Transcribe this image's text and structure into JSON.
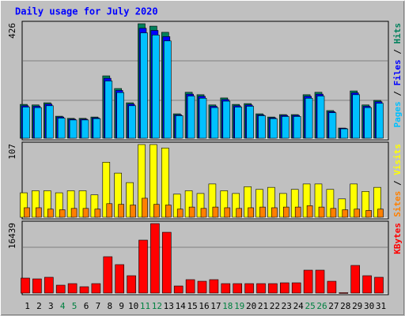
{
  "chart_data": [
    {
      "type": "bar",
      "title": "Daily usage for July 2020",
      "legend_separator": " / ",
      "ylim": [
        0,
        426
      ],
      "yticks": [
        426
      ],
      "series": [
        {
          "name": "Hits",
          "color": "#00805c",
          "values": [
            126,
            124,
            132,
            82,
            74,
            74,
            79,
            232,
            185,
            132,
            426,
            417,
            394,
            91,
            171,
            162,
            124,
            150,
            126,
            129,
            91,
            79,
            88,
            88,
            162,
            171,
            103,
            38,
            176,
            124,
            141
          ]
        },
        {
          "name": "Files",
          "color": "#0000ff",
          "values": [
            121,
            119,
            127,
            79,
            71,
            71,
            76,
            223,
            178,
            127,
            409,
            401,
            378,
            87,
            164,
            156,
            119,
            144,
            121,
            124,
            87,
            76,
            85,
            85,
            156,
            164,
            99,
            37,
            169,
            119,
            136
          ]
        },
        {
          "name": "Pages",
          "color": "#00c0ff",
          "values": [
            116,
            114,
            121,
            75,
            68,
            68,
            73,
            213,
            170,
            121,
            392,
            384,
            362,
            84,
            157,
            149,
            114,
            138,
            116,
            119,
            84,
            73,
            81,
            81,
            149,
            157,
            95,
            35,
            162,
            114,
            130
          ]
        }
      ]
    },
    {
      "type": "bar",
      "legend_separator": " / ",
      "ylim": [
        0,
        107
      ],
      "yticks": [
        107
      ],
      "series": [
        {
          "name": "Visits",
          "color": "#ffff00",
          "values": [
            36,
            39,
            39,
            36,
            39,
            39,
            33,
            81,
            65,
            51,
            107,
            107,
            102,
            34,
            39,
            35,
            49,
            39,
            35,
            45,
            41,
            44,
            35,
            41,
            49,
            49,
            41,
            27,
            49,
            38,
            44
          ]
        },
        {
          "name": "Sites",
          "color": "#ff8000",
          "values": [
            14,
            14,
            12,
            11,
            13,
            13,
            12,
            20,
            19,
            18,
            28,
            19,
            18,
            12,
            15,
            13,
            15,
            14,
            13,
            14,
            15,
            14,
            15,
            15,
            17,
            15,
            13,
            11,
            12,
            10,
            12
          ]
        }
      ]
    },
    {
      "type": "bar",
      "ylim": [
        0,
        16439
      ],
      "yticks": [
        16439
      ],
      "categories": [
        "1",
        "2",
        "3",
        "4",
        "5",
        "6",
        "7",
        "8",
        "9",
        "10",
        "11",
        "12",
        "13",
        "14",
        "15",
        "16",
        "17",
        "18",
        "19",
        "20",
        "21",
        "22",
        "23",
        "24",
        "25",
        "26",
        "27",
        "28",
        "29",
        "30",
        "31"
      ],
      "category_colors": [
        "#000000",
        "#000000",
        "#000000",
        "#008040",
        "#008040",
        "#000000",
        "#000000",
        "#000000",
        "#000000",
        "#000000",
        "#008040",
        "#008040",
        "#000000",
        "#000000",
        "#000000",
        "#000000",
        "#000000",
        "#008040",
        "#008040",
        "#000000",
        "#000000",
        "#000000",
        "#000000",
        "#000000",
        "#008040",
        "#008040",
        "#000000",
        "#000000",
        "#000000",
        "#000000",
        "#000000"
      ],
      "series": [
        {
          "name": "KBytes",
          "color": "#ff0000",
          "values": [
            3550,
            3360,
            3740,
            1870,
            2240,
            1500,
            2240,
            8600,
            6730,
            4110,
            12520,
            16439,
            14380,
            1680,
            3180,
            2800,
            3180,
            2240,
            2240,
            2240,
            2240,
            2240,
            2430,
            2430,
            5420,
            5420,
            2800,
            100,
            6540,
            4110,
            3740
          ]
        }
      ]
    }
  ]
}
